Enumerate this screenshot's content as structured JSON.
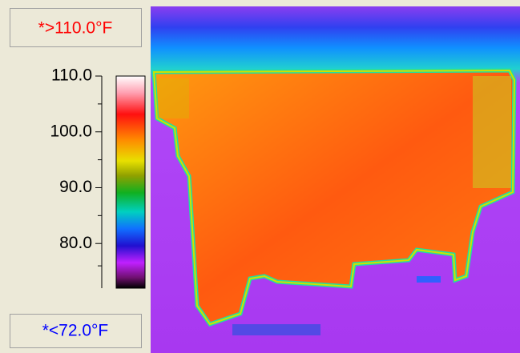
{
  "header": {
    "max_label": "*>110.0°F",
    "min_label": "*<72.0°F"
  },
  "scale": {
    "ylim": [
      72,
      110
    ],
    "yticks": [
      {
        "value": 110,
        "label": "110.0"
      },
      {
        "value": 100,
        "label": "100.0"
      },
      {
        "value": 90,
        "label": "90.0"
      },
      {
        "value": 80,
        "label": "80.0"
      }
    ]
  }
}
